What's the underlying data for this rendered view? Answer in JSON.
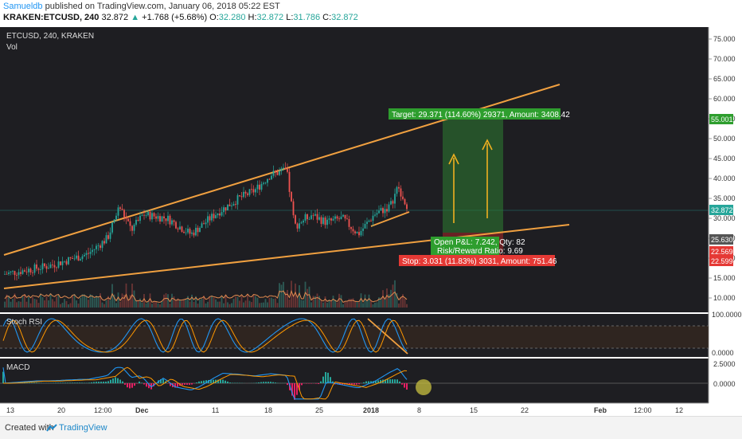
{
  "header": {
    "author": "Samueldb",
    "published": " published on TradingView.com, January 06, 2018 05:22 EST",
    "symbol": "KRAKEN:ETCUSD, 240",
    "last": "32.872",
    "change": "+1.768 (+5.68%)",
    "o_label": "O:",
    "o": "32.280",
    "h_label": "H:",
    "h": "32.872",
    "l_label": "L:",
    "l": "31.786",
    "c_label": "C:",
    "c": "32.872"
  },
  "pane_main": {
    "title": "ETCUSD, 240, KRAKEN",
    "vol_label": "Vol"
  },
  "pane_stoch": {
    "title": "Stoch RSI"
  },
  "pane_macd": {
    "title": "MACD"
  },
  "price_axis": [
    "75.000",
    "70.000",
    "65.000",
    "60.000",
    "55.000",
    "50.000",
    "45.000",
    "40.000",
    "35.000",
    "30.000",
    "25.000",
    "20.000",
    "15.000",
    "10.000"
  ],
  "price_markers": [
    {
      "text": "55.001",
      "color": "#2e9e2e"
    },
    {
      "text": "32.872",
      "color": "#26a69a"
    },
    {
      "text": "25.630",
      "color": "#555555"
    },
    {
      "text": "22.569",
      "color": "#e53935"
    },
    {
      "text": "22.599",
      "color": "#e53935"
    }
  ],
  "stoch_axis": [
    "100.0000",
    "0.0000"
  ],
  "macd_axis": [
    "2.5000",
    "0.0000"
  ],
  "time_axis": [
    "13",
    "20",
    "12:00",
    "Dec",
    "11",
    "18",
    "25",
    "2018",
    "8",
    "15",
    "22",
    "Feb",
    "12:00",
    "12"
  ],
  "position": {
    "target": "Target: 29.371 (114.60%) 29371, Amount: 3408.42",
    "pnl": "Open P&L: 7.242, Qty: 82",
    "rr": "Risk/Reward Ratio: 9.69",
    "stop": "Stop: 3.031 (11.83%) 3031, Amount: 751.46"
  },
  "footer": {
    "created": "Created with",
    "brand": "TradingView"
  },
  "colors": {
    "bg": "#1e1e22",
    "up": "#26a69a",
    "down": "#ef5350",
    "trend": "#f0a040",
    "target": "#2e9e2e",
    "stop": "#e53935",
    "macd": "#2196f3",
    "signal": "#ff9800"
  }
}
